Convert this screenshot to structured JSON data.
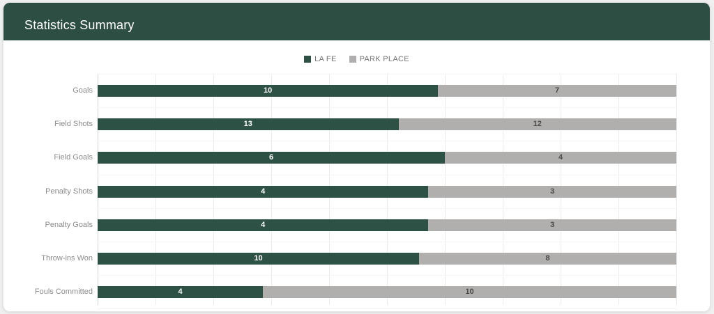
{
  "card": {
    "title": "Statistics Summary"
  },
  "colors": {
    "header_bg": "#2d4e42",
    "team1": "#2d5245",
    "team2": "#b1afad",
    "page_bg": "#eff0ef",
    "category_label": "#8c8c8c",
    "legend_text": "#757575"
  },
  "chart_data": {
    "type": "bar",
    "subtype": "horizontal-stacked-100-percent",
    "title": "Statistics Summary",
    "categories": [
      "Goals",
      "Field Shots",
      "Field Goals",
      "Penalty Shots",
      "Penalty Goals",
      "Throw-ins Won",
      "Fouls Committed"
    ],
    "series": [
      {
        "name": "LA FE",
        "color": "#2d5245",
        "value_text_color": "#ffffff",
        "values": [
          10,
          13,
          6,
          4,
          4,
          10,
          4
        ]
      },
      {
        "name": "PARK PLACE",
        "color": "#b1afad",
        "value_text_color": "#4b4b4b",
        "values": [
          7,
          12,
          4,
          3,
          3,
          8,
          10
        ]
      }
    ],
    "xlabel": "",
    "ylabel": "",
    "grid": true,
    "gridline_interval_percent": 10,
    "legend_position": "top",
    "value_labels": "centered-in-segment"
  }
}
